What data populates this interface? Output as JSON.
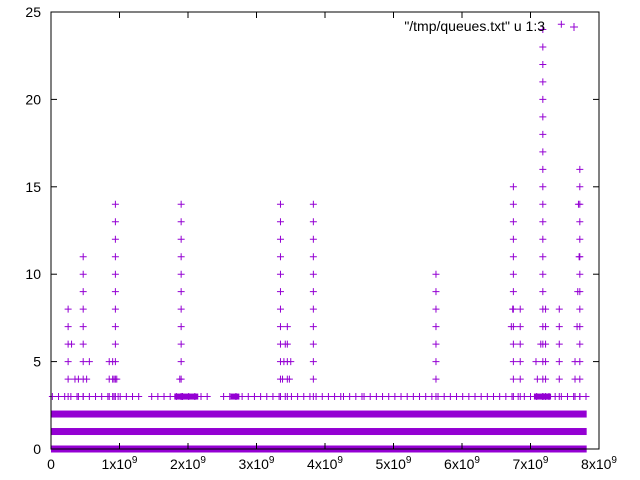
{
  "chart_data": {
    "type": "scatter",
    "title": "",
    "xlabel": "",
    "ylabel": "",
    "xlim": [
      0,
      8000000000
    ],
    "ylim": [
      0,
      25
    ],
    "grid": false,
    "legend_position": "top-right",
    "x_ticks": [
      {
        "value": 0,
        "label": "0",
        "exp": ""
      },
      {
        "value": 1000000000,
        "label": "1x10",
        "exp": "9"
      },
      {
        "value": 2000000000,
        "label": "2x10",
        "exp": "9"
      },
      {
        "value": 3000000000,
        "label": "3x10",
        "exp": "9"
      },
      {
        "value": 4000000000,
        "label": "4x10",
        "exp": "9"
      },
      {
        "value": 5000000000,
        "label": "5x10",
        "exp": "9"
      },
      {
        "value": 6000000000,
        "label": "6x10",
        "exp": "9"
      },
      {
        "value": 7000000000,
        "label": "7x10",
        "exp": "9"
      },
      {
        "value": 8000000000,
        "label": "8x10",
        "exp": "9"
      }
    ],
    "y_ticks": [
      {
        "value": 0,
        "label": "0"
      },
      {
        "value": 5,
        "label": "5"
      },
      {
        "value": 10,
        "label": "10"
      },
      {
        "value": 15,
        "label": "15"
      },
      {
        "value": 20,
        "label": "20"
      },
      {
        "value": 25,
        "label": "25"
      }
    ],
    "series": [
      {
        "name": "\"/tmp/queues.txt\" u 1:3",
        "color": "#9400d3",
        "marker": "plus",
        "dense_bands": [
          {
            "y": 0,
            "x_start": 0,
            "x_end": 7820000000
          },
          {
            "y": 1,
            "x_start": 0,
            "x_end": 7820000000
          },
          {
            "y": 2,
            "x_start": 0,
            "x_end": 7820000000
          }
        ],
        "columns": [
          {
            "x": 250000000,
            "y_min": 3,
            "y_max": 8
          },
          {
            "x": 400000000,
            "y_min": 3,
            "y_max": 4
          },
          {
            "x": 470000000,
            "y_min": 3,
            "y_max": 11
          },
          {
            "x": 850000000,
            "y_min": 3,
            "y_max": 5
          },
          {
            "x": 900000000,
            "y_min": 3,
            "y_max": 5
          },
          {
            "x": 940000000,
            "y_min": 3,
            "y_max": 14
          },
          {
            "x": 1900000000,
            "y_min": 3,
            "y_max": 14
          },
          {
            "x": 3350000000,
            "y_min": 3,
            "y_max": 14
          },
          {
            "x": 3450000000,
            "y_min": 3,
            "y_max": 7
          },
          {
            "x": 3830000000,
            "y_min": 3,
            "y_max": 14
          },
          {
            "x": 5620000000,
            "y_min": 3,
            "y_max": 10
          },
          {
            "x": 6750000000,
            "y_min": 3,
            "y_max": 15
          },
          {
            "x": 6850000000,
            "y_min": 3,
            "y_max": 8
          },
          {
            "x": 7180000000,
            "y_min": 3,
            "y_max": 24
          },
          {
            "x": 7220000000,
            "y_min": 3,
            "y_max": 8
          },
          {
            "x": 7420000000,
            "y_min": 3,
            "y_max": 8
          },
          {
            "x": 7650000000,
            "y_min": 3,
            "y_max": 5
          },
          {
            "x": 7720000000,
            "y_min": 3,
            "y_max": 16
          }
        ],
        "extra_points": [
          [
            7450000000,
            24.3
          ],
          [
            7700000000,
            14
          ],
          [
            7710000000,
            11
          ],
          [
            7690000000,
            9
          ],
          [
            7680000000,
            7
          ],
          [
            6720000000,
            7
          ],
          [
            6740000000,
            8
          ],
          [
            7080000000,
            5
          ],
          [
            7100000000,
            4
          ],
          [
            7150000000,
            6
          ],
          [
            3380000000,
            4
          ],
          [
            3400000000,
            5
          ],
          [
            3420000000,
            6
          ],
          [
            3500000000,
            5
          ],
          [
            3480000000,
            4
          ],
          [
            300000000,
            6
          ],
          [
            350000000,
            4
          ],
          [
            520000000,
            4
          ],
          [
            560000000,
            5
          ],
          [
            920000000,
            4
          ],
          [
            960000000,
            4
          ],
          [
            980000000,
            3
          ],
          [
            1880000000,
            4
          ],
          [
            1920000000,
            3
          ]
        ],
        "y3_segments": [
          [
            0,
            1350000000
          ],
          [
            1350000000,
            1450000000,
            "gap"
          ],
          [
            1450000000,
            2300000000
          ],
          [
            2300000000,
            2500000000,
            "gap"
          ],
          [
            2500000000,
            4250000000
          ],
          [
            4250000000,
            4550000000
          ],
          [
            4550000000,
            6350000000
          ],
          [
            6350000000,
            7820000000
          ]
        ]
      }
    ]
  }
}
